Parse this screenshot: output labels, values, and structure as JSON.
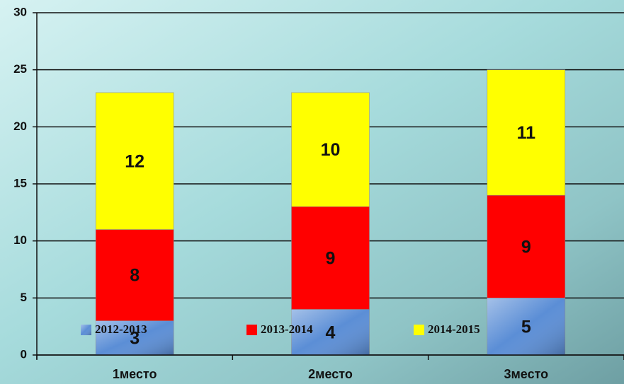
{
  "chart_data": {
    "type": "stacked_bar",
    "categories": [
      "1место",
      "2место",
      "3место"
    ],
    "series": [
      {
        "name": "2012-2013",
        "color": "#5b8ed6",
        "values": [
          3,
          4,
          5
        ]
      },
      {
        "name": "2013-2014",
        "color": "#ff0000",
        "values": [
          8,
          9,
          9
        ]
      },
      {
        "name": "2014-2015",
        "color": "#ffff00",
        "values": [
          12,
          10,
          11
        ]
      }
    ],
    "ylim": [
      0,
      30
    ],
    "yticks": [
      0,
      5,
      10,
      15,
      20,
      25,
      30
    ],
    "grid": true
  }
}
